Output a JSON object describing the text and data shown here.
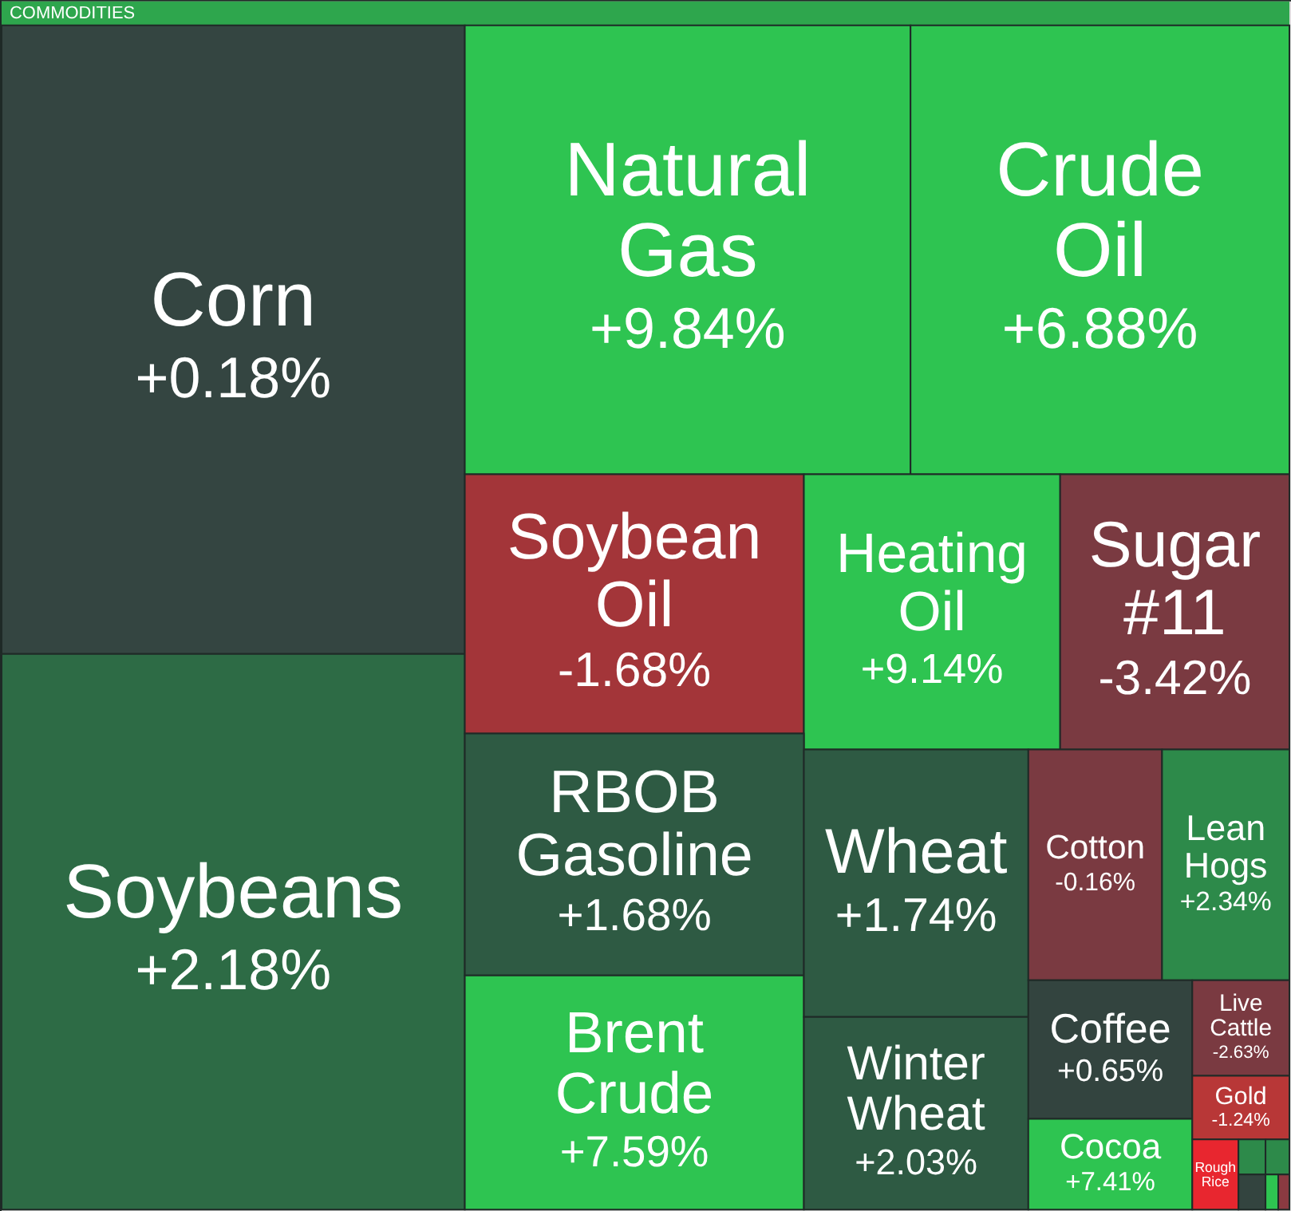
{
  "chart_data": {
    "type": "other",
    "title": "COMMODITIES",
    "categories": [
      "Corn",
      "Soybeans",
      "Natural Gas",
      "Crude Oil",
      "Soybean Oil",
      "Heating Oil",
      "Sugar #11",
      "RBOB Gasoline",
      "Brent Crude",
      "Wheat",
      "Winter Wheat",
      "Cotton",
      "Lean Hogs",
      "Coffee",
      "Cocoa",
      "Live Cattle",
      "Gold",
      "Rough Rice",
      null,
      null,
      null,
      null,
      null
    ],
    "values": [
      0.18,
      2.18,
      9.84,
      6.88,
      -1.68,
      9.14,
      -3.42,
      1.68,
      7.59,
      1.74,
      2.03,
      -0.16,
      2.34,
      0.65,
      7.41,
      -2.63,
      -1.24,
      null,
      null,
      null,
      null,
      null,
      null
    ],
    "value_labels": [
      "+0.18%",
      "+2.18%",
      "+9.84%",
      "+6.88%",
      "-1.68%",
      "+9.14%",
      "-3.42%",
      "+1.68%",
      "+7.59%",
      "+1.74%",
      "+2.03%",
      "-0.16%",
      "+2.34%",
      "+0.65%",
      "+7.41%",
      "-2.63%",
      "-1.24%",
      null,
      null,
      null,
      null,
      null,
      null
    ],
    "colors": [
      "#344541",
      "#2d6b45",
      "#2ec451",
      "#2ec451",
      "#a33539",
      "#2ec451",
      "#7a3a41",
      "#2e5a43",
      "#2ec451",
      "#2e5a43",
      "#2e5a43",
      "#7a3a41",
      "#2d8a4a",
      "#33443f",
      "#2ec451",
      "#7a3a41",
      "#b83737",
      "#e8262f",
      "#2d8a4a",
      "#2d8a4a",
      "#33443f",
      "#2ec451",
      "#8a3a41"
    ]
  }
}
